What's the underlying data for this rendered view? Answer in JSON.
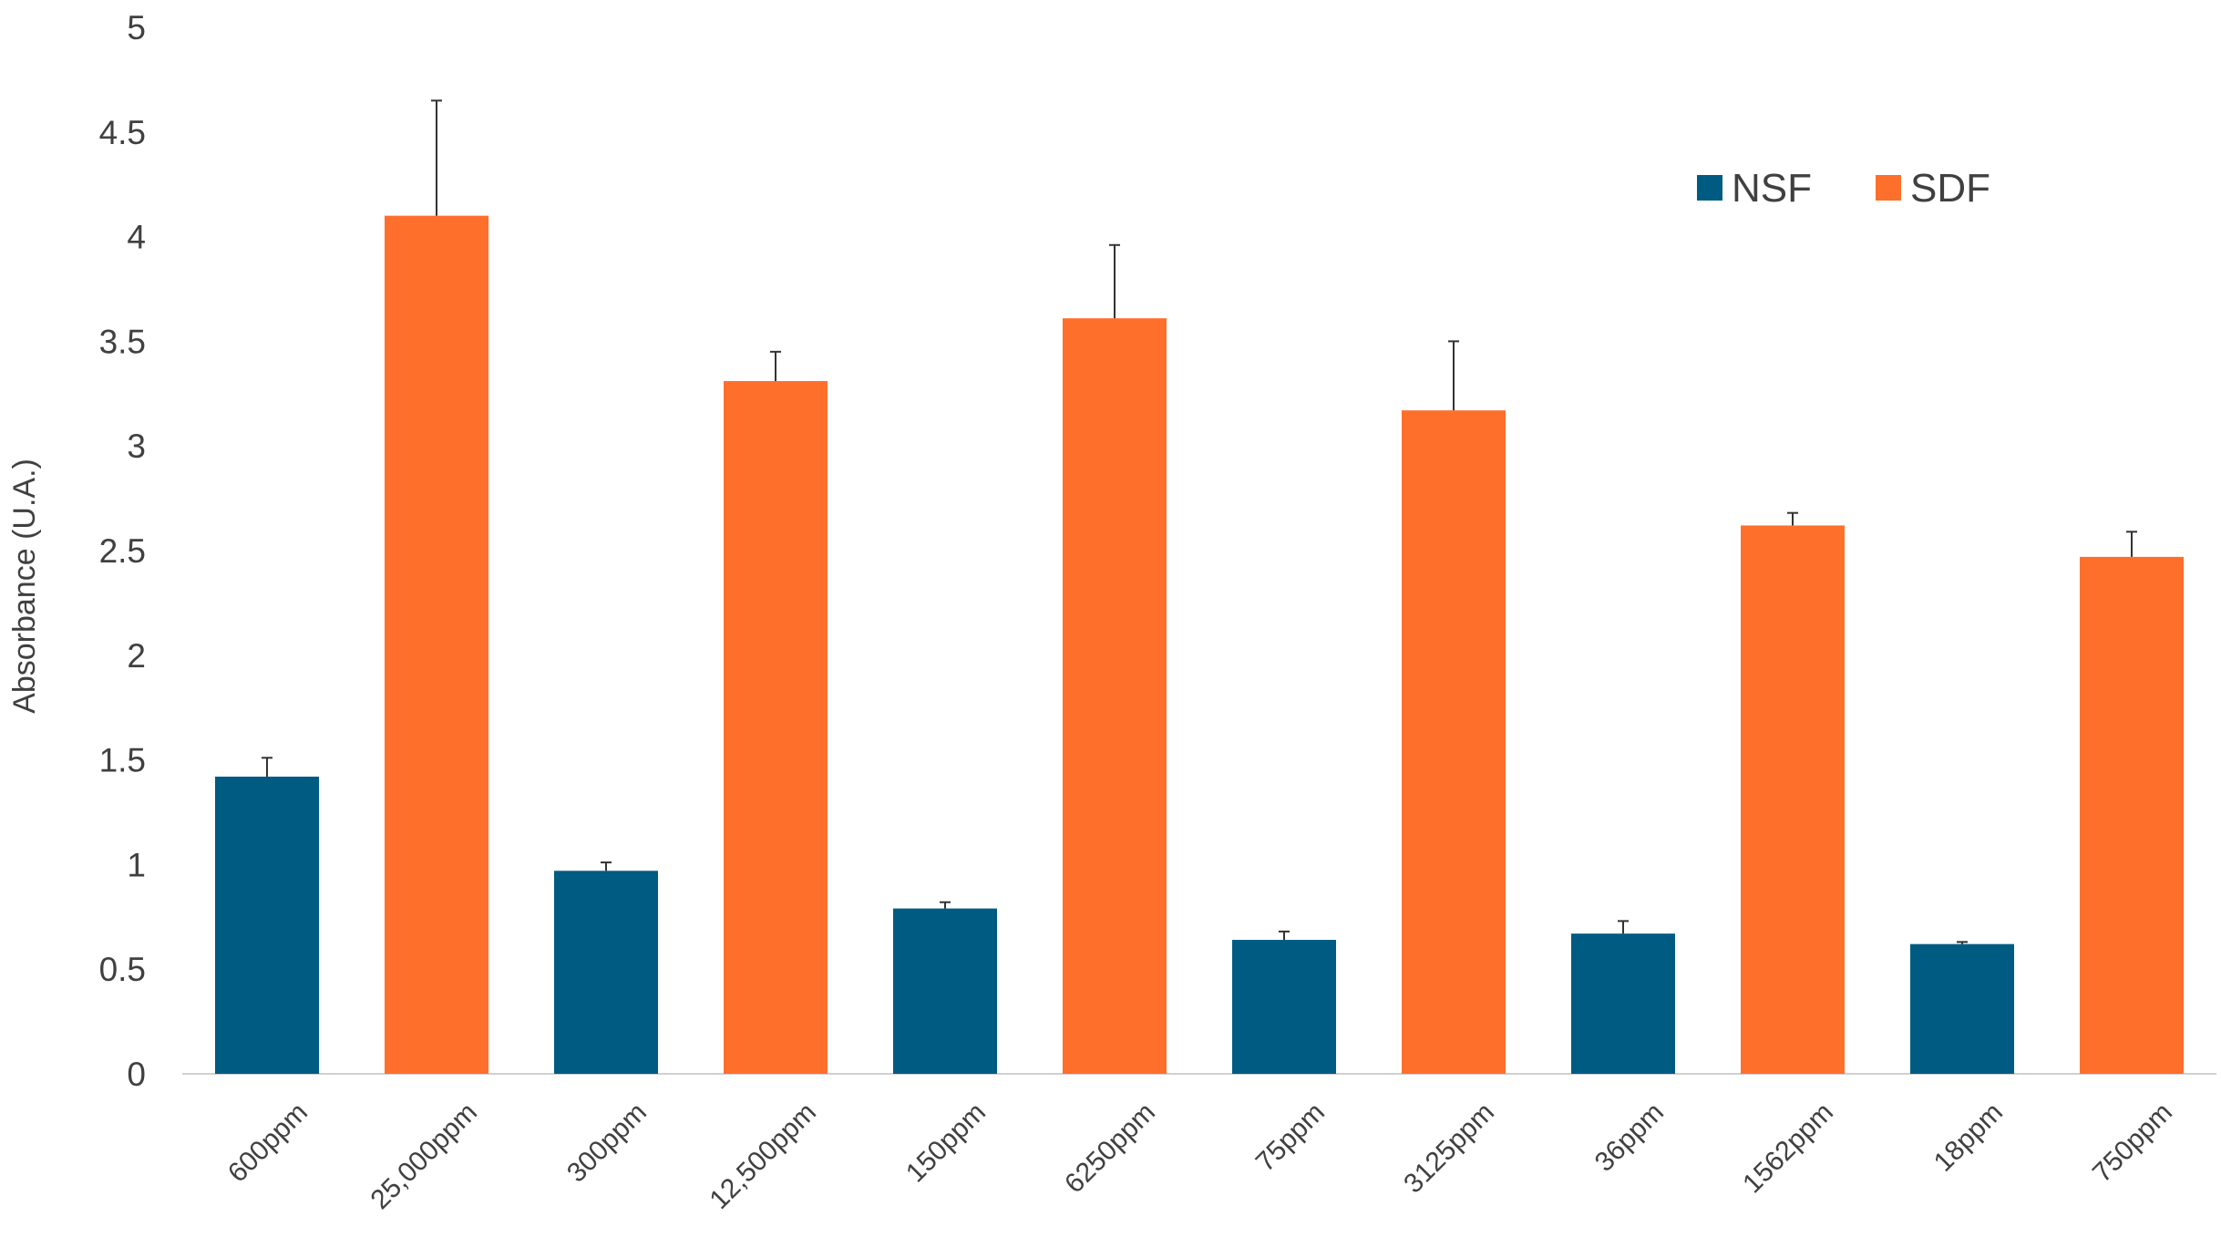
{
  "chart_data": {
    "type": "bar",
    "title": "",
    "xlabel": "",
    "ylabel": "Absorbance (U.A.)",
    "ylim": [
      0,
      5
    ],
    "yticks": [
      "0",
      "0.5",
      "1",
      "1.5",
      "2",
      "2.5",
      "3",
      "3.5",
      "4",
      "4.5",
      "5"
    ],
    "grid": false,
    "legend_position": "top-right",
    "colors": {
      "NSF": "#005b82",
      "SDF": "#ff6f2c"
    },
    "series": [
      {
        "name": "NSF"
      },
      {
        "name": "SDF"
      }
    ],
    "bars": [
      {
        "category": "600ppm",
        "series": "NSF",
        "value": 1.42,
        "error": 0.09
      },
      {
        "category": "25,000ppm",
        "series": "SDF",
        "value": 4.1,
        "error": 0.55
      },
      {
        "category": "300ppm",
        "series": "NSF",
        "value": 0.97,
        "error": 0.04
      },
      {
        "category": "12,500ppm",
        "series": "SDF",
        "value": 3.31,
        "error": 0.14
      },
      {
        "category": "150ppm",
        "series": "NSF",
        "value": 0.79,
        "error": 0.03
      },
      {
        "category": "6250ppm",
        "series": "SDF",
        "value": 3.61,
        "error": 0.35
      },
      {
        "category": "75ppm",
        "series": "NSF",
        "value": 0.64,
        "error": 0.04
      },
      {
        "category": "3125ppm",
        "series": "SDF",
        "value": 3.17,
        "error": 0.33
      },
      {
        "category": "36ppm",
        "series": "NSF",
        "value": 0.67,
        "error": 0.06
      },
      {
        "category": "1562ppm",
        "series": "SDF",
        "value": 2.62,
        "error": 0.06
      },
      {
        "category": "18ppm",
        "series": "NSF",
        "value": 0.62,
        "error": 0.01
      },
      {
        "category": "750ppm",
        "series": "SDF",
        "value": 2.47,
        "error": 0.12
      }
    ]
  }
}
